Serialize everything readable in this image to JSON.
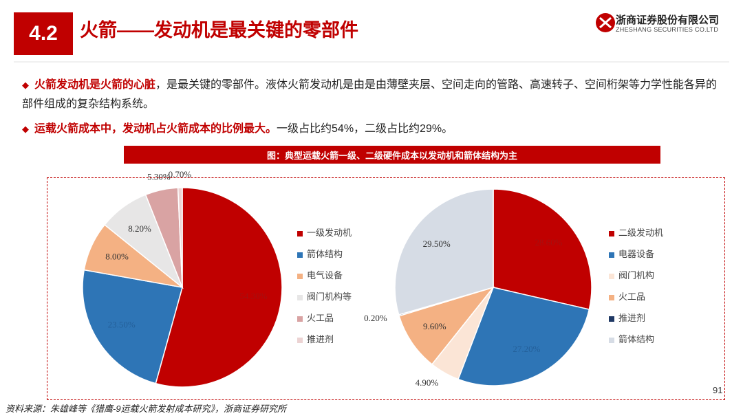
{
  "header": {
    "section": "4.2",
    "title": "火箭——发动机是最关键的零部件",
    "company": "浙商证券股份有限公司",
    "company_en": "ZHESHANG SECURITIES CO.LTD"
  },
  "bullets": [
    {
      "bold": "火箭发动机是火箭的心脏",
      "text": "，是最关键的零部件。液体火箭发动机是由是由薄壁夹层、空间走向的管路、高速转子、空间桁架等力学性能各异的部件组成的复杂结构系统。"
    },
    {
      "bold": "运载火箭成本中，发动机占火箭成本的比例最大。",
      "text": "一级占比约54%，二级占比约29%。"
    }
  ],
  "figure_title": "图：典型运载火箭一级、二级硬件成本以发动机和箭体结构为主",
  "source": "资料来源：朱雄峰等《猎鹰-9运载火箭发射成本研究》，浙商证券研究所",
  "page_number": "91",
  "chart_data": [
    {
      "type": "pie",
      "categories": [
        "一级发动机",
        "箭体结构",
        "电气设备",
        "阀门机构等",
        "火工品",
        "推进剂"
      ],
      "values": [
        54.3,
        23.5,
        8.0,
        8.2,
        5.3,
        0.7
      ],
      "value_labels": [
        "54.30%",
        "23.50%",
        "8.00%",
        "8.20%",
        "5.30%",
        "0.70%"
      ],
      "colors": [
        "#c00000",
        "#2e75b6",
        "#f4b183",
        "#e7e6e6",
        "#d9a3a3",
        "#ecd3d3"
      ]
    },
    {
      "type": "pie",
      "categories": [
        "二级发动机",
        "电器设备",
        "阀门机构",
        "火工品",
        "推进剂",
        "箭体结构"
      ],
      "values": [
        28.6,
        27.2,
        4.9,
        9.6,
        0.2,
        29.5
      ],
      "value_labels": [
        "28.60%",
        "27.20%",
        "4.90%",
        "9.60%",
        "0.20%",
        "29.50%"
      ],
      "colors": [
        "#c00000",
        "#2e75b6",
        "#fbe5d6",
        "#f4b183",
        "#1f3864",
        "#d6dce5"
      ]
    }
  ]
}
